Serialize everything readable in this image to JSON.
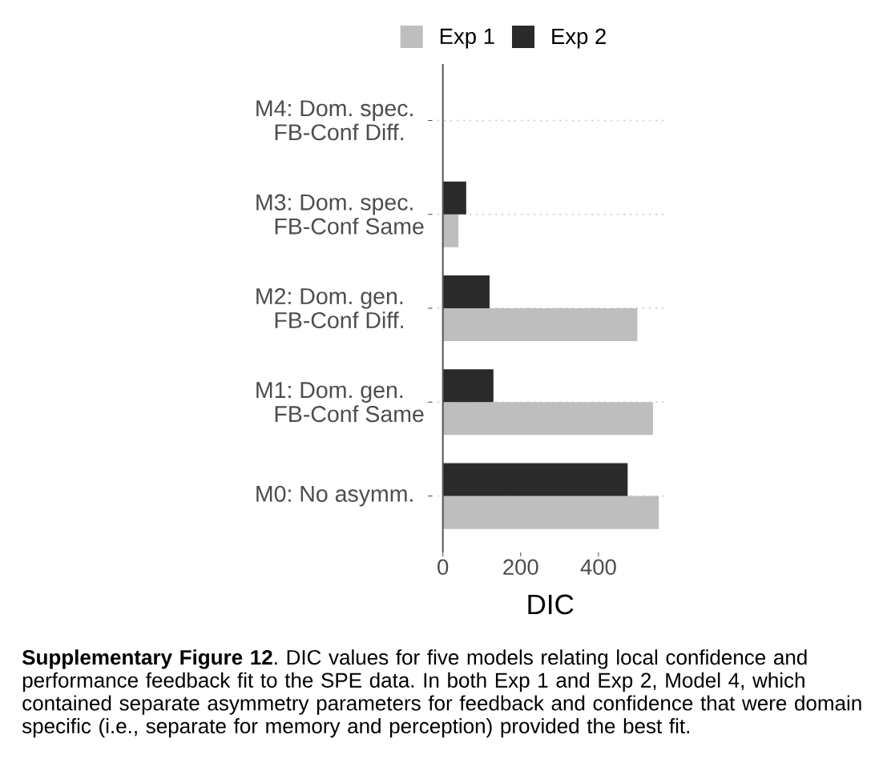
{
  "chart_data": {
    "type": "bar",
    "orientation": "horizontal",
    "categories": [
      "M4: Dom. spec. FB-Conf Diff.",
      "M3: Dom. spec. FB-Conf Same",
      "M2: Dom. gen. FB-Conf Diff.",
      "M1: Dom. gen. FB-Conf Same",
      "M0: No asymm."
    ],
    "series": [
      {
        "name": "Exp 1",
        "color": "#bebebe",
        "values": [
          0,
          40,
          500,
          540,
          555
        ]
      },
      {
        "name": "Exp 2",
        "color": "#2a2a2a",
        "values": [
          0,
          60,
          120,
          130,
          475
        ]
      }
    ],
    "xlabel": "DIC",
    "xlim": [
      -28,
      580
    ],
    "xticks": [
      0,
      200,
      400
    ],
    "grid": "y",
    "legend": "top",
    "annotations": [
      "**Supplementary Figure 12**. DIC values for five models relating local confidence and performance feedback fit to the SPE data. In both Exp 1 and Exp 2, Model 4, which contained separate asymmetry parameters for feedback and confidence that were domain specific (i.e., separate for memory and perception) provided the best fit."
    ]
  }
}
